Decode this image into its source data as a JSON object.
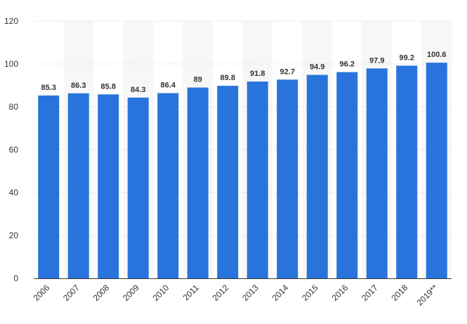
{
  "chart_data": {
    "type": "bar",
    "categories": [
      "2006",
      "2007",
      "2008",
      "2009",
      "2010",
      "2011",
      "2012",
      "2013",
      "2014",
      "2015",
      "2016",
      "2017",
      "2018",
      "2019**"
    ],
    "values": [
      85.3,
      86.3,
      85.8,
      84.3,
      86.4,
      89,
      89.8,
      91.8,
      92.7,
      94.9,
      96.2,
      97.9,
      99.2,
      100.6
    ],
    "value_labels": [
      "85.3",
      "86.3",
      "85.8",
      "84.3",
      "86.4",
      "89",
      "89.8",
      "91.8",
      "92.7",
      "94.9",
      "96.2",
      "97.9",
      "99.2",
      "100.6"
    ],
    "yticks": [
      "0",
      "20",
      "40",
      "60",
      "80",
      "100",
      "120"
    ],
    "ylim": [
      0,
      120
    ],
    "grid": true,
    "legend": "none",
    "bar_color": "#2874dc",
    "title": "",
    "xlabel": "",
    "ylabel": ""
  }
}
